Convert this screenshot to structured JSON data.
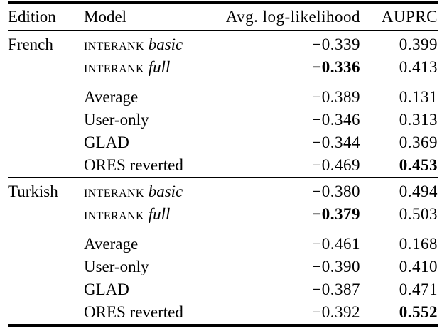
{
  "table": {
    "headers": {
      "edition": "Edition",
      "model": "Model",
      "log_likelihood": "Avg. log-likelihood",
      "auprc": "AUPRC"
    },
    "sections": [
      {
        "edition": "French",
        "model_rows": [
          {
            "model_smallcaps": "interank",
            "model_variant": "basic",
            "log_likelihood": "−0.339",
            "log_likelihood_bold": false,
            "auprc": "0.399",
            "auprc_bold": false
          },
          {
            "model_smallcaps": "interank",
            "model_variant": "full",
            "log_likelihood": "−0.336",
            "log_likelihood_bold": true,
            "auprc": "0.413",
            "auprc_bold": false
          }
        ],
        "baseline_rows": [
          {
            "model": "Average",
            "log_likelihood": "−0.389",
            "log_likelihood_bold": false,
            "auprc": "0.131",
            "auprc_bold": false
          },
          {
            "model": "User-only",
            "log_likelihood": "−0.346",
            "log_likelihood_bold": false,
            "auprc": "0.313",
            "auprc_bold": false
          },
          {
            "model": "GLAD",
            "log_likelihood": "−0.344",
            "log_likelihood_bold": false,
            "auprc": "0.369",
            "auprc_bold": false
          },
          {
            "model": "ORES reverted",
            "log_likelihood": "−0.469",
            "log_likelihood_bold": false,
            "auprc": "0.453",
            "auprc_bold": true
          }
        ]
      },
      {
        "edition": "Turkish",
        "model_rows": [
          {
            "model_smallcaps": "interank",
            "model_variant": "basic",
            "log_likelihood": "−0.380",
            "log_likelihood_bold": false,
            "auprc": "0.494",
            "auprc_bold": false
          },
          {
            "model_smallcaps": "interank",
            "model_variant": "full",
            "log_likelihood": "−0.379",
            "log_likelihood_bold": true,
            "auprc": "0.503",
            "auprc_bold": false
          }
        ],
        "baseline_rows": [
          {
            "model": "Average",
            "log_likelihood": "−0.461",
            "log_likelihood_bold": false,
            "auprc": "0.168",
            "auprc_bold": false
          },
          {
            "model": "User-only",
            "log_likelihood": "−0.390",
            "log_likelihood_bold": false,
            "auprc": "0.410",
            "auprc_bold": false
          },
          {
            "model": "GLAD",
            "log_likelihood": "−0.387",
            "log_likelihood_bold": false,
            "auprc": "0.471",
            "auprc_bold": false
          },
          {
            "model": "ORES reverted",
            "log_likelihood": "−0.392",
            "log_likelihood_bold": false,
            "auprc": "0.552",
            "auprc_bold": true
          }
        ]
      }
    ]
  }
}
